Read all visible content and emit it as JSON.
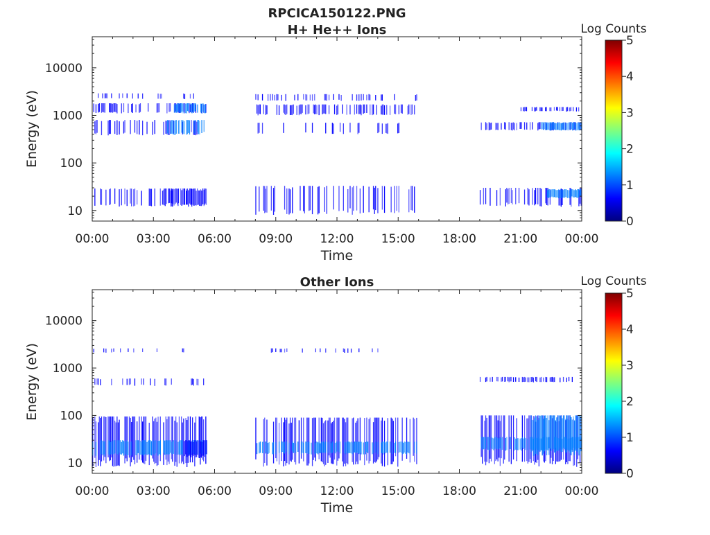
{
  "figure": {
    "title": "RPCICA150122.PNG"
  },
  "colorscale": [
    "#00007f",
    "#0000ff",
    "#007fff",
    "#00ffff",
    "#7fff7f",
    "#ffff00",
    "#ff7f00",
    "#ff0000",
    "#7f0000"
  ],
  "chart_data": [
    {
      "type": "heatmap",
      "title": "H+ He++ Ions",
      "xlabel": "Time",
      "ylabel": "Energy (eV)",
      "x_ticks": [
        "00:00",
        "03:00",
        "06:00",
        "09:00",
        "12:00",
        "15:00",
        "18:00",
        "21:00",
        "00:00"
      ],
      "xlim_hours": [
        0,
        24
      ],
      "y_scale": "log",
      "y_ticks": [
        10,
        100,
        1000,
        10000
      ],
      "ylim": [
        6,
        45000
      ],
      "colorbar": {
        "label": "Log Counts",
        "min": 0,
        "max": 5,
        "ticks": [
          0,
          1,
          2,
          3,
          4,
          5
        ]
      },
      "data_gaps_hours": [
        [
          5.6,
          8.0
        ],
        [
          15.9,
          19.0
        ]
      ],
      "bands": [
        {
          "t": [
            0.0,
            5.6
          ],
          "e": [
            1100,
            1800
          ],
          "density": 0.45,
          "level": 0.8
        },
        {
          "t": [
            4.0,
            5.6
          ],
          "e": [
            1100,
            1800
          ],
          "density": 0.8,
          "level": 1.1
        },
        {
          "t": [
            0.0,
            5.0
          ],
          "e": [
            2200,
            2900
          ],
          "density": 0.2,
          "level": 0.6
        },
        {
          "t": [
            0.0,
            5.5
          ],
          "e": [
            380,
            800
          ],
          "density": 0.3,
          "level": 0.7
        },
        {
          "t": [
            3.5,
            5.5
          ],
          "e": [
            380,
            800
          ],
          "density": 0.6,
          "level": 1.0
        },
        {
          "t": [
            0.0,
            5.6
          ],
          "e": [
            12,
            29
          ],
          "density": 0.35,
          "level": 0.6
        },
        {
          "t": [
            3.5,
            5.6
          ],
          "e": [
            12,
            29
          ],
          "density": 0.9,
          "level": 0.9
        },
        {
          "t": [
            8.0,
            15.9
          ],
          "e": [
            2000,
            2800
          ],
          "density": 0.2,
          "level": 0.5
        },
        {
          "t": [
            8.0,
            15.9
          ],
          "e": [
            1000,
            1700
          ],
          "density": 0.4,
          "level": 0.65
        },
        {
          "t": [
            8.0,
            15.9
          ],
          "e": [
            400,
            700
          ],
          "density": 0.15,
          "level": 0.5
        },
        {
          "t": [
            8.0,
            15.9
          ],
          "e": [
            8,
            33
          ],
          "density": 0.35,
          "level": 0.5
        },
        {
          "t": [
            19.0,
            24.0
          ],
          "e": [
            12,
            30
          ],
          "density": 0.4,
          "level": 0.6
        },
        {
          "t": [
            22.3,
            24.0
          ],
          "e": [
            18,
            28
          ],
          "density": 1.0,
          "level": 1.05
        },
        {
          "t": [
            19.0,
            24.0
          ],
          "e": [
            480,
            720
          ],
          "density": 0.5,
          "level": 0.8
        },
        {
          "t": [
            22.0,
            24.0
          ],
          "e": [
            480,
            720
          ],
          "density": 1.0,
          "level": 1.0
        },
        {
          "t": [
            21.0,
            24.0
          ],
          "e": [
            1200,
            1500
          ],
          "density": 0.4,
          "level": 0.8
        }
      ]
    },
    {
      "type": "heatmap",
      "title": "Other Ions",
      "xlabel": "Time",
      "ylabel": "Energy (eV)",
      "x_ticks": [
        "00:00",
        "03:00",
        "06:00",
        "09:00",
        "12:00",
        "15:00",
        "18:00",
        "21:00",
        "00:00"
      ],
      "xlim_hours": [
        0,
        24
      ],
      "y_scale": "log",
      "y_ticks": [
        10,
        100,
        1000,
        10000
      ],
      "ylim": [
        6,
        45000
      ],
      "colorbar": {
        "label": "Log Counts",
        "min": 0,
        "max": 5,
        "ticks": [
          0,
          1,
          2,
          3,
          4,
          5
        ]
      },
      "data_gaps_hours": [
        [
          5.6,
          8.0
        ],
        [
          15.9,
          19.0
        ]
      ],
      "bands": [
        {
          "t": [
            0.0,
            5.6
          ],
          "e": [
            8,
            95
          ],
          "density": 0.7,
          "level": 0.7
        },
        {
          "t": [
            0.0,
            5.6
          ],
          "e": [
            14,
            30
          ],
          "density": 0.8,
          "level": 1.2
        },
        {
          "t": [
            4.5,
            5.6
          ],
          "e": [
            13,
            30
          ],
          "density": 1.0,
          "level": 0.9
        },
        {
          "t": [
            0.0,
            5.5
          ],
          "e": [
            420,
            600
          ],
          "density": 0.25,
          "level": 0.6
        },
        {
          "t": [
            0.0,
            5.0
          ],
          "e": [
            2100,
            2600
          ],
          "density": 0.1,
          "level": 0.4
        },
        {
          "t": [
            8.0,
            15.9
          ],
          "e": [
            8,
            90
          ],
          "density": 0.5,
          "level": 0.6
        },
        {
          "t": [
            8.0,
            15.9
          ],
          "e": [
            15,
            28
          ],
          "density": 0.7,
          "level": 1.2
        },
        {
          "t": [
            8.0,
            14.0
          ],
          "e": [
            2100,
            2600
          ],
          "density": 0.15,
          "level": 0.4
        },
        {
          "t": [
            19.0,
            24.0
          ],
          "e": [
            8,
            100
          ],
          "density": 0.7,
          "level": 0.7
        },
        {
          "t": [
            21.5,
            24.0
          ],
          "e": [
            14,
            100
          ],
          "density": 1.0,
          "level": 0.95
        },
        {
          "t": [
            19.0,
            24.0
          ],
          "e": [
            18,
            35
          ],
          "density": 0.8,
          "level": 1.3
        },
        {
          "t": [
            19.0,
            24.0
          ],
          "e": [
            500,
            650
          ],
          "density": 0.35,
          "level": 0.7
        }
      ]
    }
  ]
}
